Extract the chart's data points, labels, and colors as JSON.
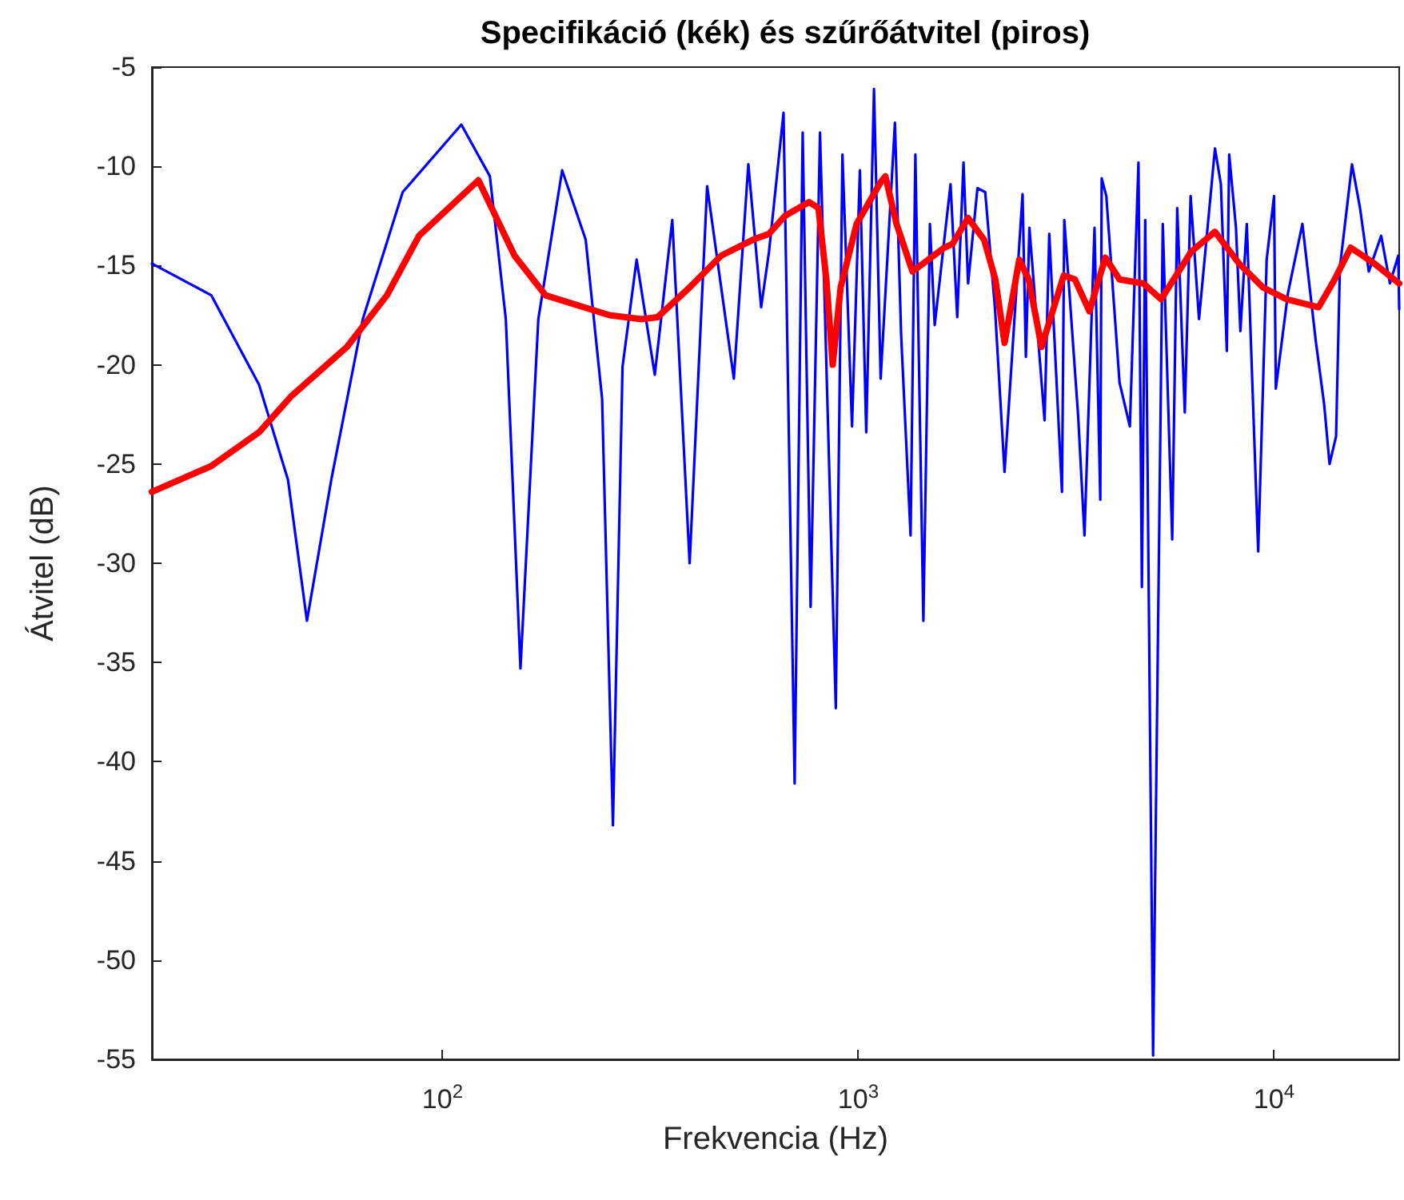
{
  "chart_data": {
    "type": "line",
    "title": "Specifikáció (kék) és szűrőátvitel (piros)",
    "xlabel": "Frekvencia (Hz)",
    "ylabel": "Átvitel (dB)",
    "log": "x",
    "xlim": [
      20,
      20000
    ],
    "xticks": [
      {
        "value": 100,
        "label": "10$^{2}$"
      },
      {
        "value": 1000,
        "label": "10$^{3}$"
      },
      {
        "value": 10000,
        "label": "10$^{4}$"
      }
    ],
    "ylim": [
      -55,
      -5
    ],
    "yticks": [
      -55,
      -50,
      -45,
      -40,
      -35,
      -30,
      -25,
      -20,
      -15,
      -10,
      -5
    ],
    "grid": false,
    "legend": false,
    "marker": "none",
    "line_style": "solid",
    "series": [
      {
        "color": "#0000ff",
        "x": [
          20,
          27.8,
          36.2,
          42.5,
          47.2,
          54,
          64.3,
          80.2,
          111,
          130,
          142,
          154,
          170,
          194,
          221,
          242,
          257,
          271,
          293,
          324,
          357,
          393,
          433,
          502,
          544,
          584,
          610,
          661,
          703,
          735,
          768,
          809,
          883,
          916,
          966,
          1009,
          1045,
          1091,
          1132,
          1225,
          1268,
          1336,
          1372,
          1434,
          1487,
          1527,
          1667,
          1730,
          1791,
          1837,
          1935,
          2020,
          2133,
          2248,
          2484,
          2530,
          2580,
          2806,
          2880,
          3090,
          3130,
          3380,
          3500,
          3700,
          3820,
          3850,
          3950,
          4250,
          4500,
          4720,
          4810,
          4900,
          5118,
          5400,
          5690,
          5850,
          6100,
          6300,
          6600,
          7210,
          7450,
          7700,
          7800,
          8100,
          8300,
          8600,
          9160,
          9600,
          10000,
          10100,
          10800,
          11700,
          12600,
          13200,
          13600,
          14100,
          14400,
          15400,
          16100,
          16900,
          18100,
          19000,
          19900,
          20000
        ],
        "values": [
          -14.9,
          -16.5,
          -21,
          -25.8,
          -32.9,
          -25.8,
          -17.7,
          -11.3,
          -7.9,
          -10.5,
          -17.7,
          -35.3,
          -17.7,
          -10.2,
          -13.7,
          -21.7,
          -43.2,
          -20.1,
          -14.7,
          -20.5,
          -12.7,
          -30,
          -11,
          -20.7,
          -9.9,
          -17.1,
          -14.3,
          -7.3,
          -41.1,
          -8.3,
          -32.2,
          -8.3,
          -37.3,
          -9.4,
          -23.1,
          -10.2,
          -23.4,
          -6.1,
          -20.7,
          -7.8,
          -18.5,
          -28.6,
          -9.4,
          -32.9,
          -12.9,
          -18,
          -10.9,
          -17.6,
          -9.8,
          -15.9,
          -11.1,
          -11.3,
          -17.2,
          -25.4,
          -11.4,
          -19.6,
          -13.1,
          -22.8,
          -13.4,
          -26.4,
          -12.7,
          -22.6,
          -28.6,
          -13.1,
          -26.8,
          -10.6,
          -11.5,
          -20.9,
          -23.1,
          -9.8,
          -31.2,
          -12.7,
          -54.8,
          -12.9,
          -28.8,
          -12.1,
          -22.4,
          -11.5,
          -17.7,
          -9.1,
          -10.9,
          -19.3,
          -9.4,
          -13.1,
          -18.3,
          -12.9,
          -29.4,
          -14.7,
          -11.5,
          -21.2,
          -16.4,
          -12.9,
          -18.8,
          -22,
          -25,
          -23.6,
          -15.1,
          -9.9,
          -12.1,
          -15.3,
          -13.5,
          -15.9,
          -14.5,
          -17.2
        ]
      },
      {
        "color": "#ff0000",
        "x": [
          20,
          27.8,
          36.2,
          43.2,
          58.9,
          73.5,
          87.8,
          122,
          149,
          177,
          252,
          301,
          329,
          393,
          468,
          558,
          610,
          666,
          761,
          802,
          838,
          868,
          907,
          991,
          1132,
          1162,
          1236,
          1350,
          1474,
          1610,
          1687,
          1837,
          2008,
          2137,
          2248,
          2439,
          2570,
          2760,
          3120,
          3320,
          3597,
          3930,
          4250,
          4850,
          5350,
          6320,
          7210,
          8240,
          9400,
          10730,
          12800,
          13990,
          15290,
          17430,
          20000
        ],
        "values": [
          -26.4,
          -25.1,
          -23.4,
          -21.6,
          -19.1,
          -16.5,
          -13.5,
          -10.7,
          -14.5,
          -16.5,
          -17.5,
          -17.7,
          -17.6,
          -16.1,
          -14.5,
          -13.7,
          -13.4,
          -12.5,
          -11.8,
          -12.1,
          -15.7,
          -20,
          -16.1,
          -12.9,
          -10.8,
          -10.5,
          -12.9,
          -15.3,
          -14.7,
          -14.1,
          -13.9,
          -12.6,
          -13.7,
          -15.7,
          -18.9,
          -14.7,
          -15.7,
          -19.1,
          -15.5,
          -15.7,
          -17.3,
          -14.6,
          -15.7,
          -15.9,
          -16.7,
          -14.3,
          -13.3,
          -14.9,
          -16.1,
          -16.7,
          -17.1,
          -15.7,
          -14.1,
          -14.9,
          -15.9
        ]
      }
    ]
  }
}
